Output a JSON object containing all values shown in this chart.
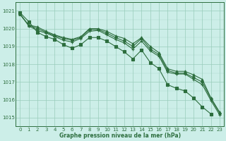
{
  "title": "Graphe pression niveau de la mer (hPa)",
  "background_color": "#cceee8",
  "grid_color": "#99ccbb",
  "line_color": "#2d6e3e",
  "xlim": [
    -0.5,
    23.5
  ],
  "ylim": [
    1014.5,
    1021.5
  ],
  "yticks": [
    1015,
    1016,
    1017,
    1018,
    1019,
    1020,
    1021
  ],
  "xticks": [
    0,
    1,
    2,
    3,
    4,
    5,
    6,
    7,
    8,
    9,
    10,
    11,
    12,
    13,
    14,
    15,
    16,
    17,
    18,
    19,
    20,
    21,
    22,
    23
  ],
  "series": [
    {
      "x": [
        0,
        1,
        2,
        3,
        4,
        5,
        6,
        7,
        8,
        9,
        10,
        11,
        12,
        13,
        14,
        15,
        16,
        17,
        18,
        19,
        20,
        21,
        22,
        23
      ],
      "y": [
        1020.8,
        1020.2,
        1020.1,
        1019.85,
        1019.65,
        1019.5,
        1019.4,
        1019.55,
        1020.0,
        1020.0,
        1019.85,
        1019.6,
        1019.45,
        1019.15,
        1019.5,
        1019.0,
        1018.65,
        1017.75,
        1017.6,
        1017.6,
        1017.4,
        1017.15,
        1016.1,
        1015.3
      ],
      "marker": "^",
      "markersize": 2.5,
      "lw": 0.8
    },
    {
      "x": [
        0,
        1,
        2,
        3,
        4,
        5,
        6,
        7,
        8,
        9,
        10,
        11,
        12,
        13,
        14,
        15,
        16,
        17,
        18,
        19,
        20,
        21,
        22,
        23
      ],
      "y": [
        1020.8,
        1020.2,
        1020.0,
        1019.8,
        1019.6,
        1019.45,
        1019.35,
        1019.5,
        1019.95,
        1019.95,
        1019.75,
        1019.5,
        1019.3,
        1019.0,
        1019.45,
        1018.85,
        1018.55,
        1017.65,
        1017.5,
        1017.5,
        1017.25,
        1017.0,
        1016.05,
        1015.25
      ],
      "marker": "D",
      "markersize": 2.0,
      "lw": 0.8
    },
    {
      "x": [
        0,
        1,
        2,
        3,
        4,
        5,
        6,
        7,
        8,
        9,
        10,
        11,
        12,
        13,
        14,
        15,
        16,
        17,
        18,
        19,
        20,
        21,
        22,
        23
      ],
      "y": [
        1020.85,
        1020.15,
        1019.9,
        1019.75,
        1019.55,
        1019.35,
        1019.25,
        1019.45,
        1019.85,
        1019.9,
        1019.65,
        1019.4,
        1019.2,
        1018.85,
        1019.3,
        1018.75,
        1018.45,
        1017.55,
        1017.45,
        1017.45,
        1017.15,
        1016.85,
        1015.95,
        1015.15
      ],
      "marker": "+",
      "markersize": 3.5,
      "lw": 0.8
    },
    {
      "x": [
        0,
        1,
        2,
        3,
        4,
        5,
        6,
        7,
        8,
        9,
        10,
        11,
        12,
        13,
        14,
        15,
        16,
        17,
        18,
        19,
        20,
        21,
        22,
        23
      ],
      "y": [
        1020.9,
        1020.4,
        1019.8,
        1019.55,
        1019.4,
        1019.1,
        1018.9,
        1019.1,
        1019.5,
        1019.5,
        1019.3,
        1019.0,
        1018.7,
        1018.3,
        1018.8,
        1018.1,
        1017.75,
        1016.85,
        1016.65,
        1016.5,
        1016.1,
        1015.6,
        1015.2,
        null
      ],
      "marker": "s",
      "markersize": 2.5,
      "lw": 0.8
    }
  ]
}
